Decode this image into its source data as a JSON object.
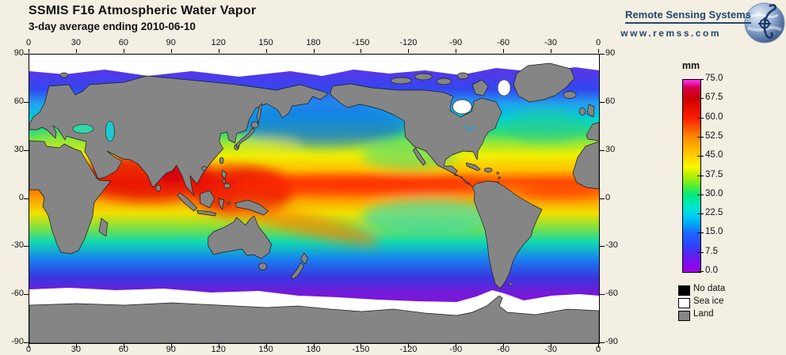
{
  "header": {
    "title": "SSMIS F16 Atmospheric Water Vapor",
    "subtitle": "3-day average ending 2010-06-10"
  },
  "logo": {
    "org": "Remote Sensing Systems",
    "url": "www.remss.com"
  },
  "map": {
    "lon_ticks": [
      "0",
      "30",
      "60",
      "90",
      "120",
      "150",
      "180",
      "-150",
      "-120",
      "-90",
      "-60",
      "-30",
      "0"
    ],
    "lat_ticks": [
      "90",
      "60",
      "30",
      "0",
      "-30",
      "-60",
      "-90"
    ]
  },
  "colorbar": {
    "unit": "mm",
    "tick_labels": [
      "75.0",
      "67.5",
      "60.0",
      "52.5",
      "45.0",
      "37.5",
      "30.0",
      "22.5",
      "15.0",
      "7.5",
      "0.0"
    ],
    "min": 0,
    "max": 75,
    "stops": [
      {
        "value": 0,
        "color": "#a400e6"
      },
      {
        "value": 4,
        "color": "#7a10f2"
      },
      {
        "value": 7.5,
        "color": "#5128f0"
      },
      {
        "value": 11,
        "color": "#2a48ff"
      },
      {
        "value": 15,
        "color": "#1e64ff"
      },
      {
        "value": 19,
        "color": "#00aaf8"
      },
      {
        "value": 22.5,
        "color": "#00d2f0"
      },
      {
        "value": 26,
        "color": "#00e8c0"
      },
      {
        "value": 30,
        "color": "#00e87c"
      },
      {
        "value": 34,
        "color": "#60ee30"
      },
      {
        "value": 37.5,
        "color": "#b4f000"
      },
      {
        "value": 41,
        "color": "#f8f800"
      },
      {
        "value": 45,
        "color": "#ffd200"
      },
      {
        "value": 52.5,
        "color": "#ff8c00"
      },
      {
        "value": 58,
        "color": "#ff3c00"
      },
      {
        "value": 60,
        "color": "#ff1e00"
      },
      {
        "value": 67.5,
        "color": "#cd0000"
      },
      {
        "value": 72,
        "color": "#d4004c"
      },
      {
        "value": 75,
        "color": "#ff30ff"
      }
    ]
  },
  "legend": [
    {
      "label": "No data",
      "color": "#000000"
    },
    {
      "label": "Sea ice",
      "color": "#ffffff"
    },
    {
      "label": "Land",
      "color": "#858585"
    }
  ],
  "colors": {
    "background": "#f3efe2",
    "land": "#858585",
    "sea_ice": "#ffffff",
    "no_data": "#000000",
    "logo_blue": "#24476f",
    "frame": "#000000"
  },
  "chart_data": {
    "type": "heatmap",
    "title": "SSMIS F16 Atmospheric Water Vapor",
    "subtitle": "3-day average ending 2010-06-10",
    "projection": "equirectangular, longitude 0 to 360 (east), latitude 90 to -90",
    "x_ticks": [
      0,
      30,
      60,
      90,
      120,
      150,
      180,
      -150,
      -120,
      -90,
      -60,
      -30,
      0
    ],
    "y_ticks": [
      90,
      60,
      30,
      0,
      -30,
      -60,
      -90
    ],
    "colorbar": {
      "unit": "mm",
      "min": 0,
      "max": 75,
      "tick_step": 7.5
    },
    "legend_classes": [
      "No data",
      "Sea ice",
      "Land"
    ],
    "pattern_summary": "Columnar water vapor: 45-70 mm (red/orange) across tropics, strongest over Arabian Sea, Bay of Bengal, SE Asian seas, west Pacific warm pool and ITCZ band near 8N across Pacific and Atlantic; diagonal SPCZ band in south-central Pacific; 20-40 mm (yellow-green) subtropics; under 15 mm (blue-purple) poleward of 45 degrees; white sea ice near poles; gray land; Antarctica gray below about 65S."
  }
}
